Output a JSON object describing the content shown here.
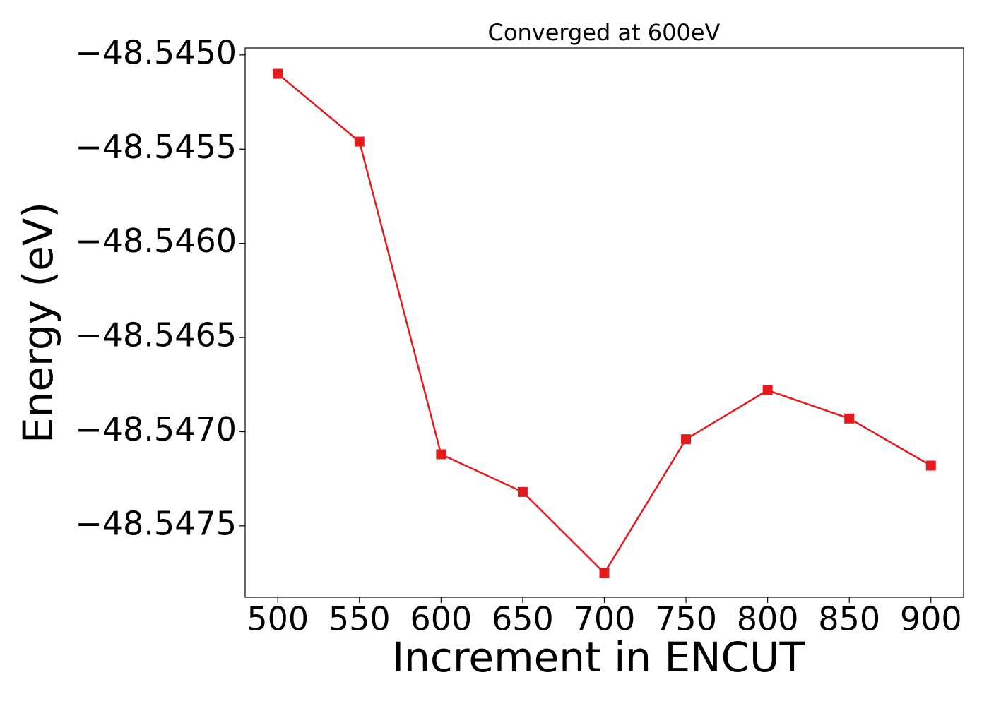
{
  "chart_data": {
    "type": "line",
    "title": "Converged at 600eV",
    "x_label": "Increment in ENCUT",
    "y_label": "Energy (eV)",
    "x": [
      500,
      550,
      600,
      650,
      700,
      750,
      800,
      850,
      900
    ],
    "values": [
      -48.5451,
      -48.54546,
      -48.54712,
      -48.54732,
      -48.54775,
      -48.54704,
      -48.54678,
      -48.54693,
      -48.54718
    ],
    "color": "#e41a1c",
    "marker": "square",
    "xlim": [
      480,
      920
    ],
    "ylim": [
      -48.547879,
      -48.544963
    ],
    "xticks": [
      500,
      550,
      600,
      650,
      700,
      750,
      800,
      850,
      900
    ],
    "yticks": [
      {
        "value": -48.545,
        "label": "−48.5450"
      },
      {
        "value": -48.5455,
        "label": "−48.5455"
      },
      {
        "value": -48.546,
        "label": "−48.5460"
      },
      {
        "value": -48.5465,
        "label": "−48.5465"
      },
      {
        "value": -48.547,
        "label": "−48.5470"
      },
      {
        "value": -48.5475,
        "label": "−48.5475"
      }
    ]
  }
}
